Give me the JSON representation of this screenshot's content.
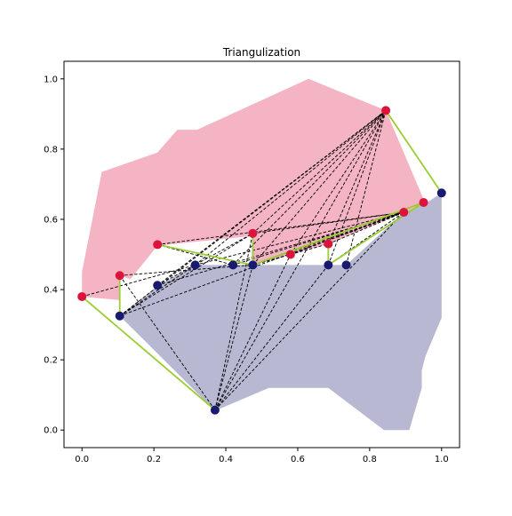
{
  "chart_data": {
    "type": "scatter",
    "title": "Triangulization",
    "xlabel": "",
    "ylabel": "",
    "xlim": [
      -0.05,
      1.05
    ],
    "ylim": [
      -0.05,
      1.05
    ],
    "x_ticks": [
      0.0,
      0.2,
      0.4,
      0.6,
      0.8,
      1.0
    ],
    "y_ticks": [
      0.0,
      0.2,
      0.4,
      0.6,
      0.8,
      1.0
    ],
    "x_tick_labels": [
      "0.0",
      "0.2",
      "0.4",
      "0.6",
      "0.8",
      "1.0"
    ],
    "y_tick_labels": [
      "0.0",
      "0.2",
      "0.4",
      "0.6",
      "0.8",
      "1.0"
    ],
    "grid": false,
    "legend": false,
    "colors": {
      "red_region": "#f4b4c3",
      "blue_region": "#b8b8d3",
      "red_points": "#dc143c",
      "blue_points": "#191970",
      "green_edges": "#9acd32",
      "dashed_edges": "#000000"
    },
    "regions": [
      {
        "color_key": "red_region",
        "polygon": [
          [
            0.0,
            0.38
          ],
          [
            0.0,
            0.45
          ],
          [
            0.055,
            0.735
          ],
          [
            0.21,
            0.79
          ],
          [
            0.265,
            0.855
          ],
          [
            0.32,
            0.855
          ],
          [
            0.63,
            1.0
          ],
          [
            0.845,
            0.91
          ],
          [
            0.955,
            0.645
          ],
          [
            0.895,
            0.62
          ],
          [
            0.685,
            0.53
          ],
          [
            0.575,
            0.5
          ],
          [
            0.475,
            0.47
          ],
          [
            0.475,
            0.56
          ],
          [
            0.45,
            0.55
          ],
          [
            0.21,
            0.525
          ],
          [
            0.135,
            0.43
          ],
          [
            0.105,
            0.44
          ],
          [
            0.105,
            0.37
          ],
          [
            0.0,
            0.38
          ]
        ]
      },
      {
        "color_key": "blue_region",
        "polygon": [
          [
            0.105,
            0.325
          ],
          [
            0.21,
            0.41
          ],
          [
            0.315,
            0.47
          ],
          [
            0.42,
            0.47
          ],
          [
            0.475,
            0.47
          ],
          [
            0.685,
            0.47
          ],
          [
            0.735,
            0.47
          ],
          [
            0.895,
            0.62
          ],
          [
            0.955,
            0.645
          ],
          [
            1.0,
            0.675
          ],
          [
            1.0,
            0.32
          ],
          [
            0.955,
            0.21
          ],
          [
            0.945,
            0.17
          ],
          [
            0.945,
            0.12
          ],
          [
            0.91,
            0.0
          ],
          [
            0.84,
            0.0
          ],
          [
            0.685,
            0.12
          ],
          [
            0.52,
            0.12
          ],
          [
            0.37,
            0.055
          ],
          [
            0.105,
            0.325
          ]
        ]
      }
    ],
    "red_points": [
      [
        0.0,
        0.38
      ],
      [
        0.105,
        0.44
      ],
      [
        0.21,
        0.528
      ],
      [
        0.475,
        0.56
      ],
      [
        0.58,
        0.5
      ],
      [
        0.685,
        0.53
      ],
      [
        0.845,
        0.91
      ],
      [
        0.895,
        0.62
      ],
      [
        0.95,
        0.648
      ]
    ],
    "blue_points": [
      [
        0.105,
        0.325
      ],
      [
        0.21,
        0.412
      ],
      [
        0.315,
        0.47
      ],
      [
        0.42,
        0.47
      ],
      [
        0.475,
        0.47
      ],
      [
        0.685,
        0.47
      ],
      [
        0.735,
        0.47
      ],
      [
        0.37,
        0.057
      ],
      [
        1.0,
        0.675
      ]
    ],
    "green_edges": [
      [
        [
          0.0,
          0.38
        ],
        [
          0.37,
          0.057
        ]
      ],
      [
        [
          0.105,
          0.44
        ],
        [
          0.105,
          0.325
        ]
      ],
      [
        [
          0.21,
          0.528
        ],
        [
          0.475,
          0.47
        ]
      ],
      [
        [
          0.475,
          0.56
        ],
        [
          0.475,
          0.47
        ]
      ],
      [
        [
          0.685,
          0.53
        ],
        [
          0.685,
          0.47
        ]
      ],
      [
        [
          0.95,
          0.648
        ],
        [
          0.685,
          0.47
        ]
      ],
      [
        [
          0.845,
          0.91
        ],
        [
          1.0,
          0.675
        ]
      ],
      [
        [
          0.95,
          0.648
        ],
        [
          0.475,
          0.47
        ]
      ]
    ],
    "dashed_edges": [
      [
        [
          0.0,
          0.38
        ],
        [
          0.315,
          0.47
        ]
      ],
      [
        [
          0.105,
          0.44
        ],
        [
          0.37,
          0.057
        ]
      ],
      [
        [
          0.105,
          0.44
        ],
        [
          0.475,
          0.47
        ]
      ],
      [
        [
          0.21,
          0.528
        ],
        [
          0.42,
          0.47
        ]
      ],
      [
        [
          0.105,
          0.325
        ],
        [
          0.475,
          0.56
        ]
      ],
      [
        [
          0.105,
          0.325
        ],
        [
          0.315,
          0.47
        ]
      ],
      [
        [
          0.105,
          0.325
        ],
        [
          0.845,
          0.91
        ]
      ],
      [
        [
          0.105,
          0.325
        ],
        [
          0.895,
          0.62
        ]
      ],
      [
        [
          0.21,
          0.412
        ],
        [
          0.475,
          0.56
        ]
      ],
      [
        [
          0.21,
          0.412
        ],
        [
          0.845,
          0.91
        ]
      ],
      [
        [
          0.21,
          0.412
        ],
        [
          0.895,
          0.62
        ]
      ],
      [
        [
          0.315,
          0.47
        ],
        [
          0.845,
          0.91
        ]
      ],
      [
        [
          0.315,
          0.47
        ],
        [
          0.895,
          0.62
        ]
      ],
      [
        [
          0.42,
          0.47
        ],
        [
          0.845,
          0.91
        ]
      ],
      [
        [
          0.42,
          0.47
        ],
        [
          0.895,
          0.62
        ]
      ],
      [
        [
          0.475,
          0.47
        ],
        [
          0.845,
          0.91
        ]
      ],
      [
        [
          0.475,
          0.47
        ],
        [
          0.895,
          0.62
        ]
      ],
      [
        [
          0.475,
          0.47
        ],
        [
          0.58,
          0.5
        ]
      ],
      [
        [
          0.475,
          0.47
        ],
        [
          0.685,
          0.53
        ]
      ],
      [
        [
          0.37,
          0.057
        ],
        [
          0.475,
          0.56
        ]
      ],
      [
        [
          0.37,
          0.057
        ],
        [
          0.475,
          0.47
        ]
      ],
      [
        [
          0.37,
          0.057
        ],
        [
          0.685,
          0.47
        ]
      ],
      [
        [
          0.37,
          0.057
        ],
        [
          0.895,
          0.62
        ]
      ],
      [
        [
          0.37,
          0.057
        ],
        [
          0.845,
          0.91
        ]
      ],
      [
        [
          0.37,
          0.057
        ],
        [
          0.58,
          0.5
        ]
      ],
      [
        [
          0.685,
          0.47
        ],
        [
          0.845,
          0.91
        ]
      ],
      [
        [
          0.685,
          0.47
        ],
        [
          0.895,
          0.62
        ]
      ],
      [
        [
          0.58,
          0.5
        ],
        [
          0.845,
          0.91
        ]
      ],
      [
        [
          0.58,
          0.5
        ],
        [
          0.895,
          0.62
        ]
      ],
      [
        [
          0.685,
          0.53
        ],
        [
          0.845,
          0.91
        ]
      ],
      [
        [
          0.685,
          0.53
        ],
        [
          0.895,
          0.62
        ]
      ],
      [
        [
          0.735,
          0.47
        ],
        [
          0.845,
          0.91
        ]
      ],
      [
        [
          0.475,
          0.56
        ],
        [
          0.845,
          0.91
        ]
      ],
      [
        [
          0.475,
          0.56
        ],
        [
          0.895,
          0.62
        ]
      ],
      [
        [
          0.21,
          0.528
        ],
        [
          0.895,
          0.62
        ]
      ]
    ]
  }
}
